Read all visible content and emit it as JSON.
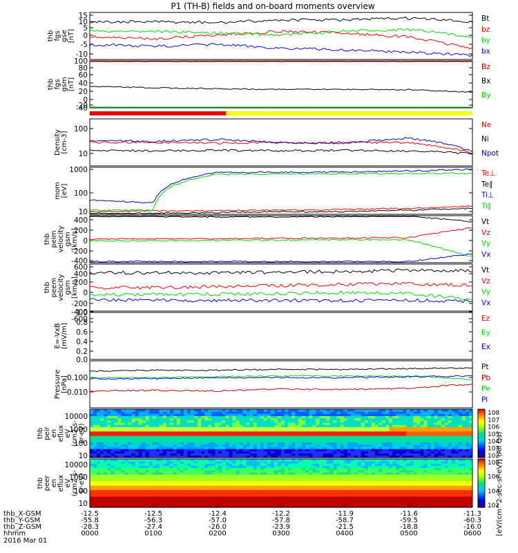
{
  "title": "P1 (TH-B) fields and on-board moments overview",
  "panels": [
    {
      "id": "fgs_gse",
      "ylabel": [
        "thb",
        "fgs",
        "gse",
        "[nT]"
      ],
      "ticks": [
        "15",
        "10",
        "5",
        "0",
        "-5",
        "-10"
      ],
      "legend": [
        {
          "name": "Bt",
          "color": "#000000"
        },
        {
          "name": "bz",
          "color": "#ff0000"
        },
        {
          "name": "by",
          "color": "#00dd00"
        },
        {
          "name": "bx",
          "color": "#0000ff"
        }
      ]
    },
    {
      "id": "fgs_gsm",
      "ylabel": [
        "thb",
        "fgs",
        "gsm",
        "[nT]"
      ],
      "ticks": [
        "100",
        "80",
        "60",
        "40",
        "20",
        "0",
        "-20",
        "-40"
      ],
      "legend": [
        {
          "name": "Bz",
          "color": "#cc0000"
        },
        {
          "name": "Bx",
          "color": "#000000"
        },
        {
          "name": "By",
          "color": "#00dd00"
        }
      ]
    },
    {
      "id": "density",
      "ylabel": [
        "Density",
        "[cm-3]"
      ],
      "ticks": [
        "100",
        "10"
      ],
      "legend": [
        {
          "name": "Ne",
          "color": "#ff0000"
        },
        {
          "name": "Ni",
          "color": "#000000"
        },
        {
          "name": "Npot",
          "color": "#0000cc"
        }
      ]
    },
    {
      "id": "temp",
      "ylabel": [
        "mom",
        "[eV]"
      ],
      "ticks": [
        "1000",
        "100",
        "10"
      ],
      "legend": [
        {
          "name": "Te⊥",
          "color": "#ff0000"
        },
        {
          "name": "Te∥",
          "color": "#000000"
        },
        {
          "name": "Ti⊥",
          "color": "#0000cc"
        },
        {
          "name": "Ti∥",
          "color": "#00dd00"
        }
      ]
    },
    {
      "id": "peim",
      "ylabel": [
        "thb",
        "peim",
        "velocity",
        "gsm",
        "[km/s]"
      ],
      "ticks": [
        "400",
        "200",
        "0",
        "-200",
        "-400"
      ],
      "legend": [
        {
          "name": "Vt",
          "color": "#000000"
        },
        {
          "name": "Vz",
          "color": "#ff0000"
        },
        {
          "name": "Vy",
          "color": "#00dd00"
        },
        {
          "name": "Vx",
          "color": "#0000ff"
        }
      ]
    },
    {
      "id": "peem",
      "ylabel": [
        "thb",
        "peem",
        "velocity",
        "gsm",
        "[km/s]"
      ],
      "ticks": [
        "600",
        "400",
        "200",
        "0",
        "-200",
        "-400",
        "-600"
      ],
      "legend": [
        {
          "name": "Vt",
          "color": "#000000"
        },
        {
          "name": "Vz",
          "color": "#ff0000"
        },
        {
          "name": "Vy",
          "color": "#00dd00"
        },
        {
          "name": "Vx",
          "color": "#0000ff"
        }
      ]
    },
    {
      "id": "efield",
      "ylabel": [
        "E=-VxB",
        "[mV/m]"
      ],
      "ticks": [
        "1.0",
        "0.8",
        "0.6",
        "0.4",
        "0.2",
        "0.0"
      ],
      "legend": [
        {
          "name": "Ez",
          "color": "#ff0000"
        },
        {
          "name": "Ey",
          "color": "#00dd00"
        },
        {
          "name": "Ex",
          "color": "#0000ff"
        }
      ]
    },
    {
      "id": "pressure",
      "ylabel": [
        "Pressure",
        "[nPa]"
      ],
      "ticks": [
        "0.100",
        "0.010"
      ],
      "legend": [
        {
          "name": "Pt",
          "color": "#000000"
        },
        {
          "name": "Pb",
          "color": "#cc0000"
        },
        {
          "name": "Pe",
          "color": "#00dd00"
        },
        {
          "name": "Pi",
          "color": "#0000ff"
        }
      ]
    },
    {
      "id": "peir",
      "ylabel": [
        "thb",
        "peir",
        "en",
        "eflux",
        "eV",
        "(cm2-s-",
        "sr-eV)"
      ],
      "ticks": [
        "10000",
        "1000",
        "100",
        "10"
      ]
    },
    {
      "id": "peer",
      "ylabel": [
        "thb",
        "peer",
        "en",
        "eflux",
        "eV",
        "(cm2-s-",
        "sr-eV)"
      ],
      "ticks": [
        "10000",
        "1000",
        "100",
        "10"
      ]
    }
  ],
  "colorbar": {
    "ticks": [
      "10^8",
      "10^7",
      "10^6",
      "10^5",
      "10^4",
      "10^3",
      "10^2"
    ],
    "ticks_low": [
      "10^8",
      "10^6",
      "10^4",
      "10^2"
    ],
    "label": "[eV/(cm^2-sec-sr-eV)] (All Qs)",
    "label2": "[eV/(cm^2-sec-sr-eV)]"
  },
  "axis": {
    "rows": [
      {
        "label": "thb_X-GSM",
        "values": [
          "-12.5",
          "-12.5",
          "-12.4",
          "-12.2",
          "-11.9",
          "-11.6",
          "-11.3"
        ]
      },
      {
        "label": "thb_Y-GSM",
        "values": [
          "-55.8",
          "-56.3",
          "-57.0",
          "-57.8",
          "-58.7",
          "-59.5",
          "-60.3"
        ]
      },
      {
        "label": "thb_Z-GSM",
        "values": [
          "-28.3",
          "-27.4",
          "-26.0",
          "-23.9",
          "-21.5",
          "-18.8",
          "-16.0"
        ]
      },
      {
        "label": "hhmm",
        "values": [
          "0000",
          "0100",
          "0200",
          "0300",
          "0400",
          "0500",
          "0600"
        ]
      }
    ],
    "date": "2016 Mar 01"
  },
  "chart_data": {
    "type": "line",
    "x": [
      "0000",
      "0100",
      "0200",
      "0300",
      "0400",
      "0500",
      "0600"
    ],
    "panels": [
      {
        "id": "fgs_gse",
        "ylim": [
          -10,
          15
        ],
        "series": [
          {
            "name": "Bt",
            "values": [
              10,
              10,
              9.5,
              11,
              11,
              12,
              10
            ]
          },
          {
            "name": "bz",
            "values": [
              2,
              1,
              3,
              5,
              4,
              2,
              -4
            ]
          },
          {
            "name": "by",
            "values": [
              5,
              5,
              4,
              3,
              5,
              6,
              2
            ]
          },
          {
            "name": "bx",
            "values": [
              -2,
              -3,
              -2,
              -4,
              -5,
              -6,
              -8
            ]
          }
        ]
      },
      {
        "id": "fgs_gsm",
        "ylim": [
          -50,
          100
        ],
        "series": [
          {
            "name": "Bz",
            "values": [
              98,
              98,
              98,
              98,
              98,
              98,
              98
            ]
          },
          {
            "name": "Bx",
            "values": [
              18,
              14,
              11,
              9,
              9,
              8,
              0
            ]
          },
          {
            "name": "By",
            "values": [
              -48,
              -49,
              -49,
              -49,
              -49,
              -49,
              -50
            ]
          }
        ]
      },
      {
        "id": "density",
        "ylim": [
          3,
          300
        ],
        "log": true,
        "series": [
          {
            "name": "Ne",
            "values": [
              30,
              30,
              28,
              29,
              30,
              29,
              10
            ]
          },
          {
            "name": "Ni",
            "values": [
              14,
              13,
              14,
              13,
              14,
              13,
              10
            ]
          },
          {
            "name": "Npot",
            "values": [
              35,
              33,
              40,
              30,
              28,
              45,
              12
            ]
          }
        ]
      },
      {
        "id": "temp",
        "ylim": [
          10,
          1000
        ],
        "log": true,
        "series": [
          {
            "name": "Te⊥",
            "values": [
              13,
              14,
              14,
              15,
              16,
              18,
              22
            ]
          },
          {
            "name": "Te∥",
            "values": [
              11,
              11,
              12,
              13,
              13,
              15,
              18
            ]
          },
          {
            "name": "Ti⊥",
            "values": [
              40,
              30,
              600,
              620,
              630,
              700,
              800
            ]
          },
          {
            "name": "Ti∥",
            "values": [
              15,
              15,
              500,
              520,
              530,
              540,
              550
            ]
          }
        ]
      },
      {
        "id": "peim",
        "ylim": [
          -400,
          400
        ],
        "series": [
          {
            "name": "Vt",
            "values": [
              390,
              385,
              380,
              380,
              385,
              390,
              300
            ]
          },
          {
            "name": "Vz",
            "values": [
              0,
              5,
              10,
              15,
              20,
              25,
              200
            ]
          },
          {
            "name": "Vy",
            "values": [
              -30,
              -25,
              -20,
              -15,
              -10,
              -10,
              -300
            ]
          },
          {
            "name": "Vx",
            "values": [
              -380,
              -380,
              -380,
              -380,
              -380,
              -380,
              -250
            ]
          }
        ]
      },
      {
        "id": "peem",
        "ylim": [
          -600,
          600
        ],
        "series": [
          {
            "name": "Vt",
            "values": [
              380,
              380,
              380,
              400,
              410,
              440,
              420
            ]
          },
          {
            "name": "Vz",
            "values": [
              0,
              0,
              20,
              50,
              80,
              100,
              50
            ]
          },
          {
            "name": "Vy",
            "values": [
              -180,
              -180,
              -170,
              -150,
              -130,
              -150,
              -300
            ]
          },
          {
            "name": "Vx",
            "values": [
              -320,
              -320,
              -330,
              -330,
              -330,
              -320,
              -350
            ]
          }
        ]
      },
      {
        "id": "efield",
        "ylim": [
          0,
          1
        ],
        "series": []
      },
      {
        "id": "pressure",
        "ylim": [
          0.002,
          0.3
        ],
        "log": true,
        "series": [
          {
            "name": "Pt",
            "values": [
              0.1,
              0.11,
              0.11,
              0.12,
              0.12,
              0.13,
              0.14
            ]
          },
          {
            "name": "Pb",
            "values": [
              0.012,
              0.013,
              0.012,
              0.015,
              0.014,
              0.016,
              0.025
            ]
          },
          {
            "name": "Pe",
            "values": [
              0.05,
              0.05,
              0.055,
              0.06,
              0.06,
              0.06,
              0.04
            ]
          },
          {
            "name": "Pi",
            "values": [
              0.045,
              0.045,
              0.05,
              0.05,
              0.05,
              0.055,
              0.06
            ]
          }
        ]
      }
    ]
  }
}
